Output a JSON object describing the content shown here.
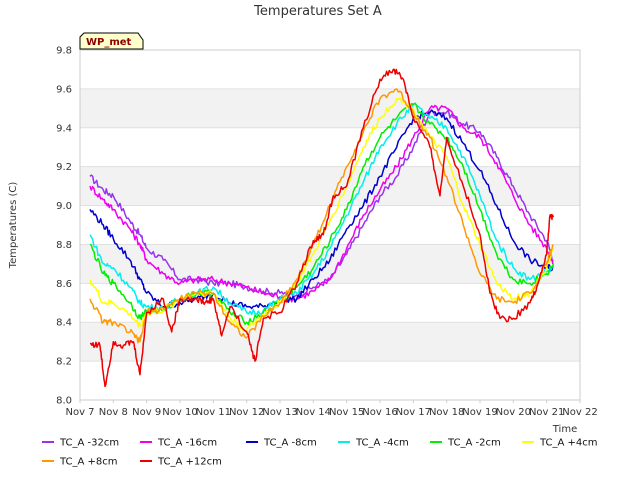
{
  "chart_data": {
    "type": "line",
    "title": "Temperatures Set A",
    "xlabel": "Time",
    "ylabel": "Temperatures (C)",
    "badge": "WP_met",
    "x_ticks": [
      "Nov 7",
      "Nov 8",
      "Nov 9",
      "Nov 10",
      "Nov 11",
      "Nov 12",
      "Nov 13",
      "Nov 14",
      "Nov 15",
      "Nov 16",
      "Nov 17",
      "Nov 18",
      "Nov 19",
      "Nov 20",
      "Nov 21",
      "Nov 22"
    ],
    "y_ticks": [
      "8.0",
      "8.2",
      "8.4",
      "8.6",
      "8.8",
      "9.0",
      "9.2",
      "9.4",
      "9.6",
      "9.8"
    ],
    "xlim": [
      0,
      15
    ],
    "ylim": [
      8.0,
      9.8
    ],
    "grid": true,
    "legend_position": "bottom",
    "x_units": "days since Nov 7",
    "series": [
      {
        "name": "TC_A -32cm",
        "color": "#9933ee",
        "x": [
          0.3,
          0.7,
          1.0,
          1.5,
          1.8,
          2.0,
          2.5,
          3.0,
          3.5,
          4.0,
          4.5,
          5.0,
          5.5,
          6.0,
          6.5,
          7.0,
          7.5,
          8.0,
          8.5,
          9.0,
          9.5,
          10.0,
          10.5,
          11.0,
          11.5,
          12.0,
          12.5,
          13.0,
          13.5,
          14.0,
          14.2
        ],
        "y": [
          9.15,
          9.08,
          9.05,
          8.92,
          8.85,
          8.78,
          8.72,
          8.62,
          8.62,
          8.6,
          8.6,
          8.58,
          8.56,
          8.55,
          8.54,
          8.58,
          8.62,
          8.75,
          8.9,
          9.05,
          9.15,
          9.3,
          9.48,
          9.48,
          9.42,
          9.38,
          9.25,
          9.1,
          8.95,
          8.82,
          8.72
        ]
      },
      {
        "name": "TC_A -16cm",
        "color": "#ee00ee",
        "x": [
          0.3,
          0.7,
          1.0,
          1.5,
          1.8,
          2.0,
          2.5,
          3.0,
          3.5,
          4.0,
          4.5,
          5.0,
          5.5,
          6.0,
          6.5,
          7.0,
          7.5,
          8.0,
          8.5,
          9.0,
          9.5,
          10.0,
          10.5,
          11.0,
          11.5,
          12.0,
          12.5,
          13.0,
          13.5,
          14.0,
          14.2
        ],
        "y": [
          9.1,
          9.03,
          8.98,
          8.88,
          8.8,
          8.72,
          8.65,
          8.6,
          8.62,
          8.62,
          8.6,
          8.58,
          8.55,
          8.53,
          8.52,
          8.56,
          8.62,
          8.78,
          8.95,
          9.08,
          9.2,
          9.35,
          9.5,
          9.5,
          9.4,
          9.35,
          9.22,
          9.05,
          8.9,
          8.78,
          8.7
        ]
      },
      {
        "name": "TC_A -8cm",
        "color": "#0000cc",
        "x": [
          0.3,
          0.7,
          1.0,
          1.5,
          1.8,
          2.0,
          2.5,
          3.0,
          3.5,
          4.0,
          4.5,
          5.0,
          5.5,
          6.0,
          6.5,
          7.0,
          7.5,
          8.0,
          8.5,
          9.0,
          9.5,
          10.0,
          10.5,
          11.0,
          11.5,
          12.0,
          12.5,
          13.0,
          13.5,
          14.0,
          14.2
        ],
        "y": [
          8.98,
          8.9,
          8.83,
          8.72,
          8.62,
          8.55,
          8.48,
          8.5,
          8.52,
          8.55,
          8.5,
          8.48,
          8.48,
          8.52,
          8.52,
          8.62,
          8.72,
          8.88,
          9.0,
          9.15,
          9.3,
          9.45,
          9.48,
          9.45,
          9.32,
          9.18,
          9.0,
          8.82,
          8.72,
          8.68,
          8.68
        ]
      },
      {
        "name": "TC_A -4cm",
        "color": "#00eeee",
        "x": [
          0.3,
          0.7,
          1.0,
          1.5,
          1.8,
          2.0,
          2.5,
          3.0,
          3.5,
          4.0,
          4.5,
          5.0,
          5.5,
          6.0,
          6.5,
          7.0,
          7.5,
          8.0,
          8.5,
          9.0,
          9.5,
          10.0,
          10.5,
          11.0,
          11.5,
          12.0,
          12.5,
          13.0,
          13.5,
          14.0,
          14.2
        ],
        "y": [
          8.85,
          8.7,
          8.68,
          8.58,
          8.5,
          8.48,
          8.47,
          8.52,
          8.55,
          8.58,
          8.5,
          8.45,
          8.46,
          8.52,
          8.55,
          8.65,
          8.78,
          8.95,
          9.12,
          9.3,
          9.42,
          9.52,
          9.45,
          9.4,
          9.25,
          9.05,
          8.82,
          8.68,
          8.62,
          8.66,
          8.68
        ]
      },
      {
        "name": "TC_A -2cm",
        "color": "#00ee00",
        "x": [
          0.3,
          0.7,
          1.0,
          1.5,
          1.8,
          2.0,
          2.5,
          3.0,
          3.5,
          4.0,
          4.5,
          5.0,
          5.5,
          6.0,
          6.5,
          7.0,
          7.5,
          8.0,
          8.5,
          9.0,
          9.5,
          10.0,
          10.5,
          11.0,
          11.5,
          12.0,
          12.5,
          13.0,
          13.5,
          14.0,
          14.2
        ],
        "y": [
          8.8,
          8.65,
          8.6,
          8.5,
          8.42,
          8.46,
          8.46,
          8.52,
          8.55,
          8.55,
          8.45,
          8.4,
          8.45,
          8.5,
          8.58,
          8.68,
          8.82,
          8.98,
          9.2,
          9.35,
          9.45,
          9.52,
          9.42,
          9.35,
          9.2,
          8.98,
          8.75,
          8.62,
          8.6,
          8.65,
          8.7
        ]
      },
      {
        "name": "TC_A +4cm",
        "color": "#ffff00",
        "x": [
          0.3,
          0.7,
          1.0,
          1.5,
          1.8,
          2.0,
          2.5,
          3.0,
          3.5,
          4.0,
          4.5,
          5.0,
          5.5,
          6.0,
          6.5,
          7.0,
          7.5,
          8.0,
          8.5,
          9.0,
          9.5,
          10.0,
          10.5,
          11.0,
          11.5,
          12.0,
          12.5,
          13.0,
          13.5,
          14.0,
          14.2
        ],
        "y": [
          8.62,
          8.5,
          8.5,
          8.44,
          8.38,
          8.45,
          8.46,
          8.52,
          8.55,
          8.55,
          8.42,
          8.36,
          8.44,
          8.5,
          8.6,
          8.75,
          8.92,
          9.1,
          9.3,
          9.45,
          9.55,
          9.5,
          9.35,
          9.25,
          9.0,
          8.8,
          8.6,
          8.52,
          8.55,
          8.68,
          8.78
        ]
      },
      {
        "name": "TC_A +8cm",
        "color": "#ff9900",
        "x": [
          0.3,
          0.7,
          1.0,
          1.5,
          1.8,
          2.0,
          2.5,
          3.0,
          3.5,
          4.0,
          4.5,
          5.0,
          5.5,
          6.0,
          6.5,
          7.0,
          7.5,
          8.0,
          8.5,
          9.0,
          9.5,
          10.0,
          10.5,
          11.0,
          11.5,
          12.0,
          12.5,
          13.0,
          13.5,
          14.0,
          14.2
        ],
        "y": [
          8.52,
          8.4,
          8.4,
          8.35,
          8.3,
          8.45,
          8.47,
          8.52,
          8.55,
          8.55,
          8.4,
          8.32,
          8.43,
          8.5,
          8.62,
          8.8,
          9.0,
          9.2,
          9.38,
          9.55,
          9.6,
          9.48,
          9.35,
          9.15,
          8.9,
          8.65,
          8.52,
          8.5,
          8.55,
          8.7,
          8.8
        ]
      },
      {
        "name": "TC_A +12cm",
        "color": "#ee0000",
        "x": [
          0.3,
          0.6,
          0.75,
          1.0,
          1.3,
          1.6,
          1.8,
          2.0,
          2.5,
          2.75,
          3.0,
          3.5,
          3.75,
          4.0,
          4.25,
          4.5,
          5.0,
          5.25,
          5.5,
          6.0,
          6.5,
          7.0,
          7.3,
          7.6,
          8.0,
          8.5,
          9.0,
          9.4,
          9.7,
          10.0,
          10.5,
          10.8,
          11.0,
          11.5,
          12.0,
          12.3,
          12.6,
          13.0,
          13.5,
          13.7,
          14.0,
          14.1,
          14.2
        ],
        "y": [
          8.29,
          8.28,
          8.07,
          8.3,
          8.28,
          8.3,
          8.13,
          8.45,
          8.52,
          8.35,
          8.52,
          8.52,
          8.5,
          8.52,
          8.33,
          8.48,
          8.35,
          8.2,
          8.42,
          8.45,
          8.6,
          8.82,
          8.85,
          9.05,
          9.1,
          9.4,
          9.65,
          9.7,
          9.65,
          9.45,
          9.3,
          9.05,
          9.35,
          9.1,
          8.85,
          8.55,
          8.42,
          8.42,
          8.5,
          8.58,
          8.75,
          8.95,
          8.94
        ]
      }
    ]
  }
}
